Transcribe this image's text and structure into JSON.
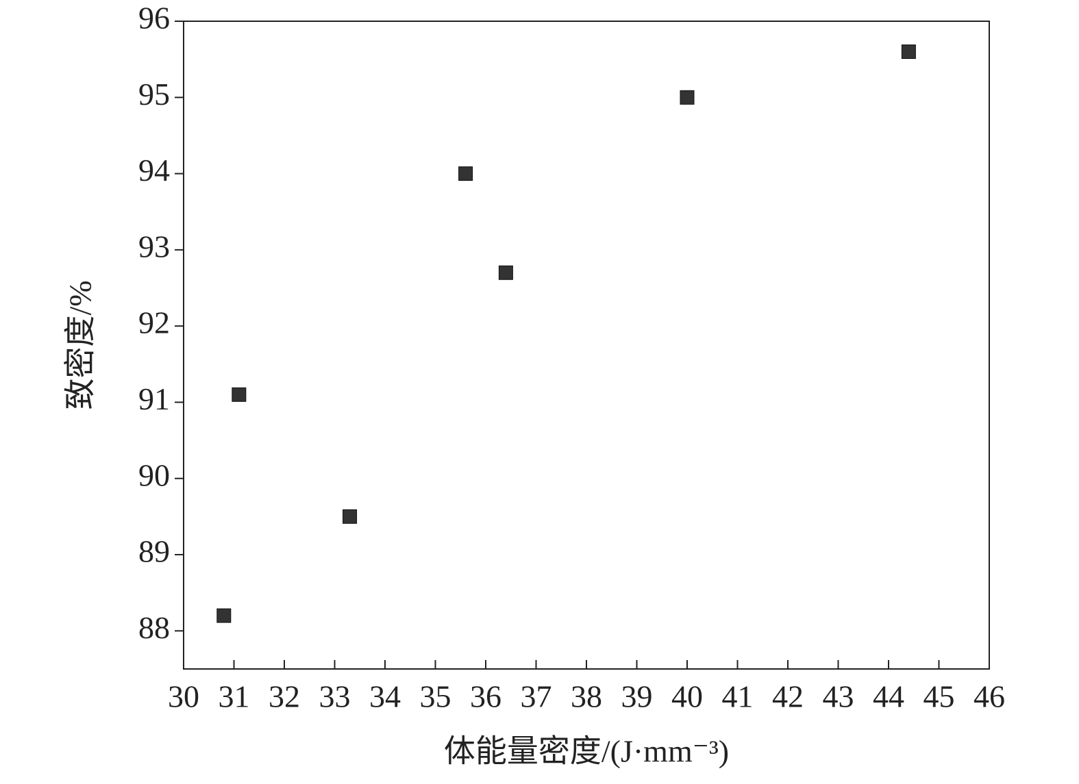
{
  "chart_data": {
    "type": "scatter",
    "x_label": "体能量密度/(J·mm⁻³)",
    "y_label": "致密度/%",
    "x": [
      30.8,
      31.1,
      33.3,
      35.6,
      36.4,
      40.0,
      44.4
    ],
    "series": [
      {
        "color": "#333333",
        "values": [
          88.2,
          91.1,
          89.5,
          94.0,
          92.7,
          95.0,
          95.6
        ]
      }
    ],
    "xlim": [
      30,
      46
    ],
    "xticks": [
      30,
      31,
      32,
      33,
      34,
      35,
      36,
      37,
      38,
      39,
      40,
      41,
      42,
      43,
      44,
      45,
      46
    ],
    "ylim": [
      87.5,
      96
    ],
    "yticks": [
      88,
      89,
      90,
      91,
      92,
      93,
      94,
      95,
      96
    ]
  }
}
